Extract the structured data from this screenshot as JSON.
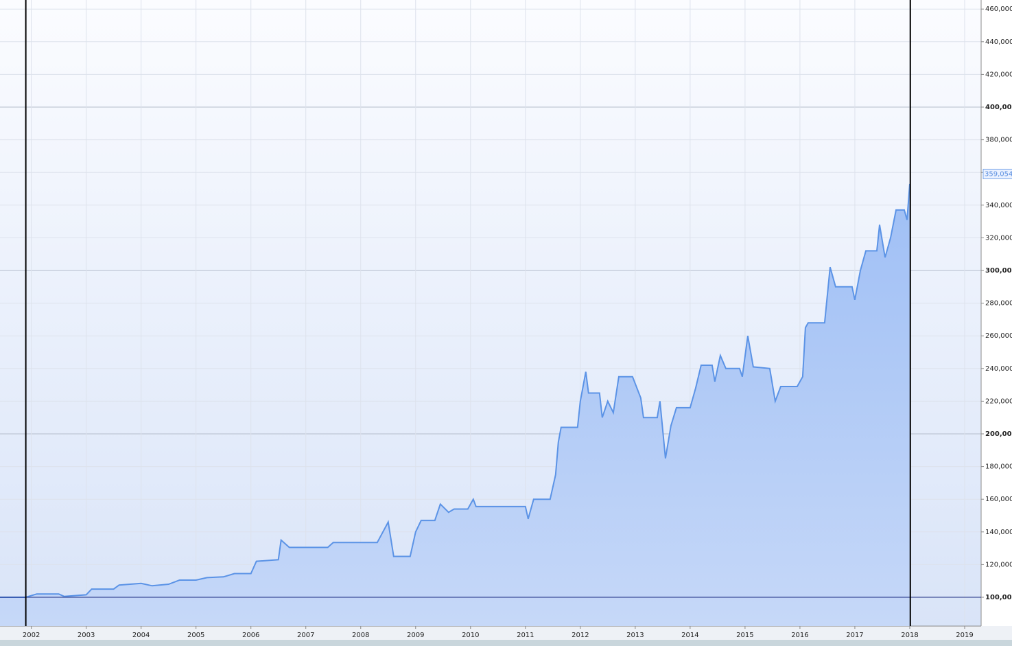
{
  "chart_data": {
    "type": "area",
    "color": "#5b93e6",
    "fill": "#a9c6f7",
    "x": [
      2001.43,
      2001.9,
      2002.1,
      2002.5,
      2002.6,
      2003.0,
      2003.1,
      2003.5,
      2003.6,
      2004.0,
      2004.2,
      2004.5,
      2004.7,
      2005.0,
      2005.2,
      2005.5,
      2005.7,
      2006.0,
      2006.1,
      2006.5,
      2006.55,
      2006.7,
      2007.4,
      2007.5,
      2008.3,
      2008.5,
      2008.6,
      2008.9,
      2009.0,
      2009.1,
      2009.35,
      2009.45,
      2009.6,
      2009.7,
      2009.95,
      2010.05,
      2010.1,
      2011.0,
      2011.05,
      2011.15,
      2011.45,
      2011.55,
      2011.6,
      2011.65,
      2011.95,
      2012.0,
      2012.1,
      2012.15,
      2012.35,
      2012.4,
      2012.5,
      2012.6,
      2012.7,
      2012.95,
      2013.1,
      2013.15,
      2013.4,
      2013.45,
      2013.55,
      2013.65,
      2013.75,
      2014.0,
      2014.1,
      2014.2,
      2014.4,
      2014.45,
      2014.55,
      2014.65,
      2014.9,
      2014.95,
      2015.05,
      2015.15,
      2015.45,
      2015.55,
      2015.65,
      2015.95,
      2016.05,
      2016.1,
      2016.15,
      2016.45,
      2016.5,
      2016.55,
      2016.65,
      2016.95,
      2017.0,
      2017.1,
      2017.2,
      2017.4,
      2017.45,
      2017.55,
      2017.65,
      2017.75,
      2017.9,
      2017.95,
      2018.0
    ],
    "values": [
      100000,
      100000,
      102000,
      102000,
      100500,
      101500,
      105000,
      105000,
      107500,
      108500,
      107000,
      108000,
      110500,
      110500,
      112000,
      112500,
      114500,
      114500,
      122000,
      123000,
      135000,
      130500,
      130500,
      133500,
      133500,
      146000,
      125000,
      125000,
      140000,
      147000,
      147000,
      157000,
      152000,
      154000,
      154000,
      160000,
      155500,
      155500,
      148000,
      160000,
      160000,
      175000,
      195000,
      204000,
      204000,
      220000,
      238000,
      225000,
      225000,
      210000,
      220000,
      213000,
      235000,
      235000,
      222000,
      210000,
      210000,
      220000,
      185000,
      205000,
      216000,
      216000,
      228000,
      242000,
      242000,
      232000,
      248000,
      240000,
      240000,
      235000,
      260000,
      241000,
      240000,
      220000,
      229000,
      229000,
      235000,
      265000,
      268000,
      268000,
      285000,
      302000,
      290000,
      290000,
      282000,
      300000,
      312000,
      312000,
      328000,
      308000,
      320000,
      337000,
      337000,
      331000,
      353000
    ],
    "xlim": [
      2001.43,
      2019.3
    ],
    "ylim": [
      82353,
      465546
    ],
    "xticks": [
      2002,
      2003,
      2004,
      2005,
      2006,
      2007,
      2008,
      2009,
      2010,
      2011,
      2012,
      2013,
      2014,
      2015,
      2016,
      2017,
      2018,
      2019
    ],
    "yticks": [
      {
        "value": 100000,
        "label": "100,000"
      },
      {
        "value": 120000,
        "label": "120,000"
      },
      {
        "value": 140000,
        "label": "140,000"
      },
      {
        "value": 160000,
        "label": "160,000"
      },
      {
        "value": 180000,
        "label": "180,000"
      },
      {
        "value": 200000,
        "label": "200,000"
      },
      {
        "value": 220000,
        "label": "220,000"
      },
      {
        "value": 240000,
        "label": "240,000"
      },
      {
        "value": 260000,
        "label": "260,000"
      },
      {
        "value": 280000,
        "label": "280,000"
      },
      {
        "value": 300000,
        "label": "300,000"
      },
      {
        "value": 320000,
        "label": "320,000"
      },
      {
        "value": 340000,
        "label": "340,000"
      },
      {
        "value": 360000,
        "label": "360,000"
      },
      {
        "value": 380000,
        "label": "380,000"
      },
      {
        "value": 400000,
        "label": "400,000"
      },
      {
        "value": 420000,
        "label": "420,000"
      },
      {
        "value": 440000,
        "label": "440,000"
      },
      {
        "value": 460000,
        "label": "460,000"
      }
    ],
    "current_value": {
      "value": 359054,
      "label": "359,054"
    },
    "baseline": 100000,
    "vertical_lines": [
      2001.9,
      2018.01
    ],
    "grid": true
  }
}
